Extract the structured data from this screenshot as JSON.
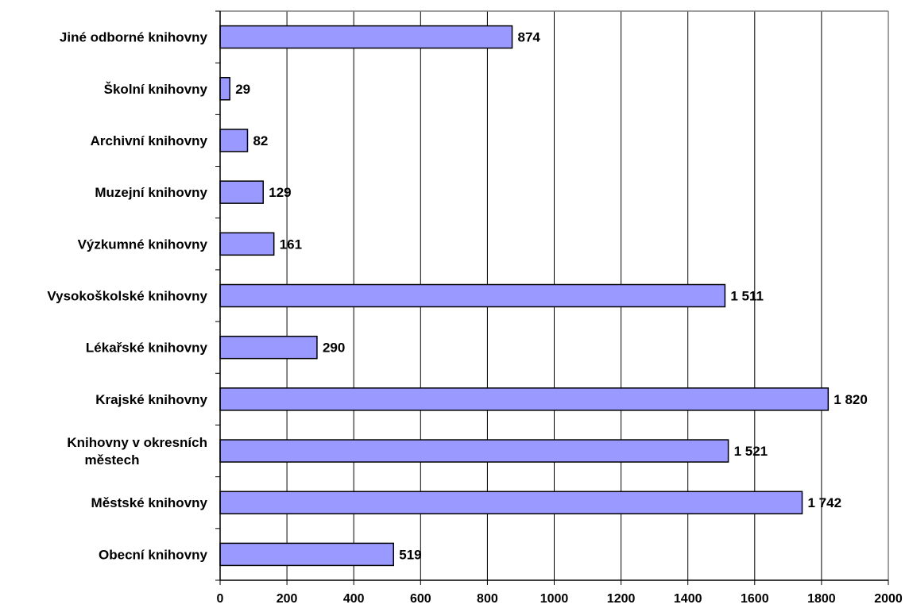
{
  "chart_data": {
    "type": "bar",
    "orientation": "horizontal",
    "categories": [
      [
        "Jiné odborné knihovny"
      ],
      [
        "Školní knihovny"
      ],
      [
        "Archivní knihovny"
      ],
      [
        "Muzejní knihovny"
      ],
      [
        "Výzkumné knihovny"
      ],
      [
        "Vysokoškolské knihovny"
      ],
      [
        "Lékařské knihovny"
      ],
      [
        "Krajské knihovny"
      ],
      [
        "Knihovny v okresních",
        "městech"
      ],
      [
        "Městské knihovny"
      ],
      [
        "Obecní knihovny"
      ]
    ],
    "values": [
      874,
      29,
      82,
      129,
      161,
      1511,
      290,
      1820,
      1521,
      1742,
      519
    ],
    "value_labels": [
      "874",
      "29",
      "82",
      "129",
      "161",
      "1 511",
      "290",
      "1 820",
      "1 521",
      "1 742",
      "519"
    ],
    "x_ticks": [
      "0",
      "200",
      "400",
      "600",
      "800",
      "1000",
      "1200",
      "1400",
      "1600",
      "1800",
      "2000"
    ],
    "xlim": [
      0,
      2000
    ],
    "grid": "vertical",
    "legend": "none",
    "bar_color": "#9999ff"
  }
}
